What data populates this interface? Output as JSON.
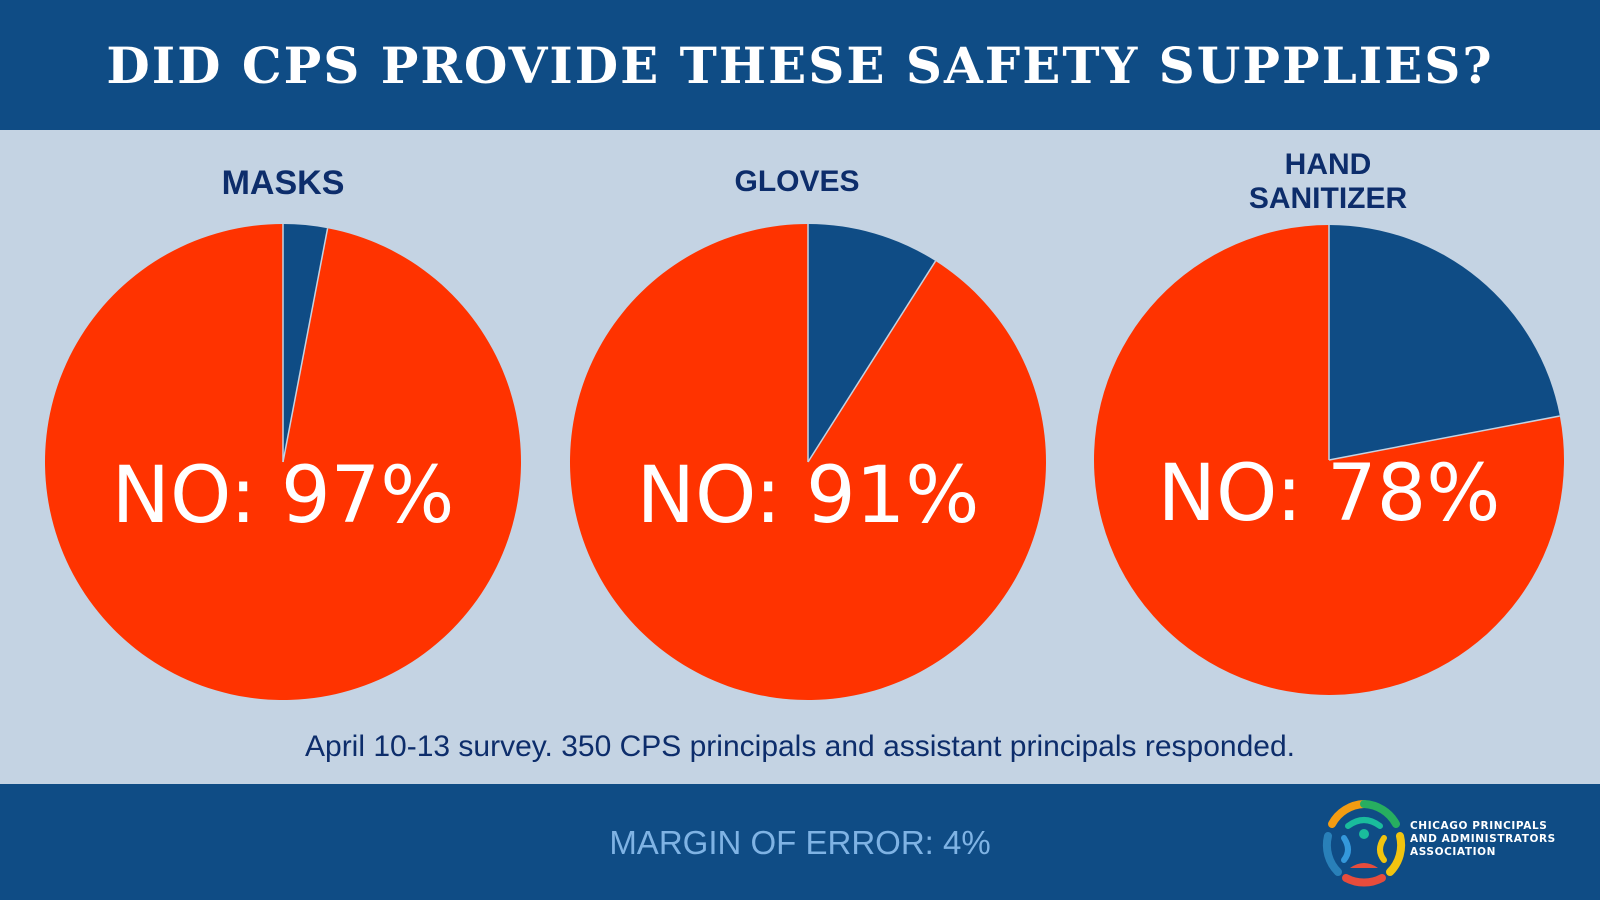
{
  "header": {
    "title": "DID CPS PROVIDE THESE SAFETY SUPPLIES?"
  },
  "colors": {
    "no": "#ff3300",
    "yes": "#0f4c85",
    "background": "#c4d3e3",
    "label": "#0d2d6b"
  },
  "chart_data": [
    {
      "type": "pie",
      "title": "MASKS",
      "slices": [
        {
          "label": "NO",
          "value": 97
        },
        {
          "label": "",
          "value": 3
        }
      ],
      "data_label": "NO: 97%"
    },
    {
      "type": "pie",
      "title": "GLOVES",
      "slices": [
        {
          "label": "NO",
          "value": 91
        },
        {
          "label": "",
          "value": 9
        }
      ],
      "data_label": "NO: 91%"
    },
    {
      "type": "pie",
      "title": "HAND SANITIZER",
      "title_lines": [
        "HAND",
        "SANITIZER"
      ],
      "slices": [
        {
          "label": "NO",
          "value": 78
        },
        {
          "label": "",
          "value": 22
        }
      ],
      "data_label": "NO: 78%"
    }
  ],
  "survey_note": "April 10-13 survey. 350 CPS principals and assistant principals responded.",
  "footer": {
    "margin_of_error": "MARGIN OF ERROR: 4%",
    "logo_lines": [
      "CHICAGO PRINCIPALS",
      "AND ADMINISTRATORS",
      "ASSOCIATION"
    ]
  }
}
